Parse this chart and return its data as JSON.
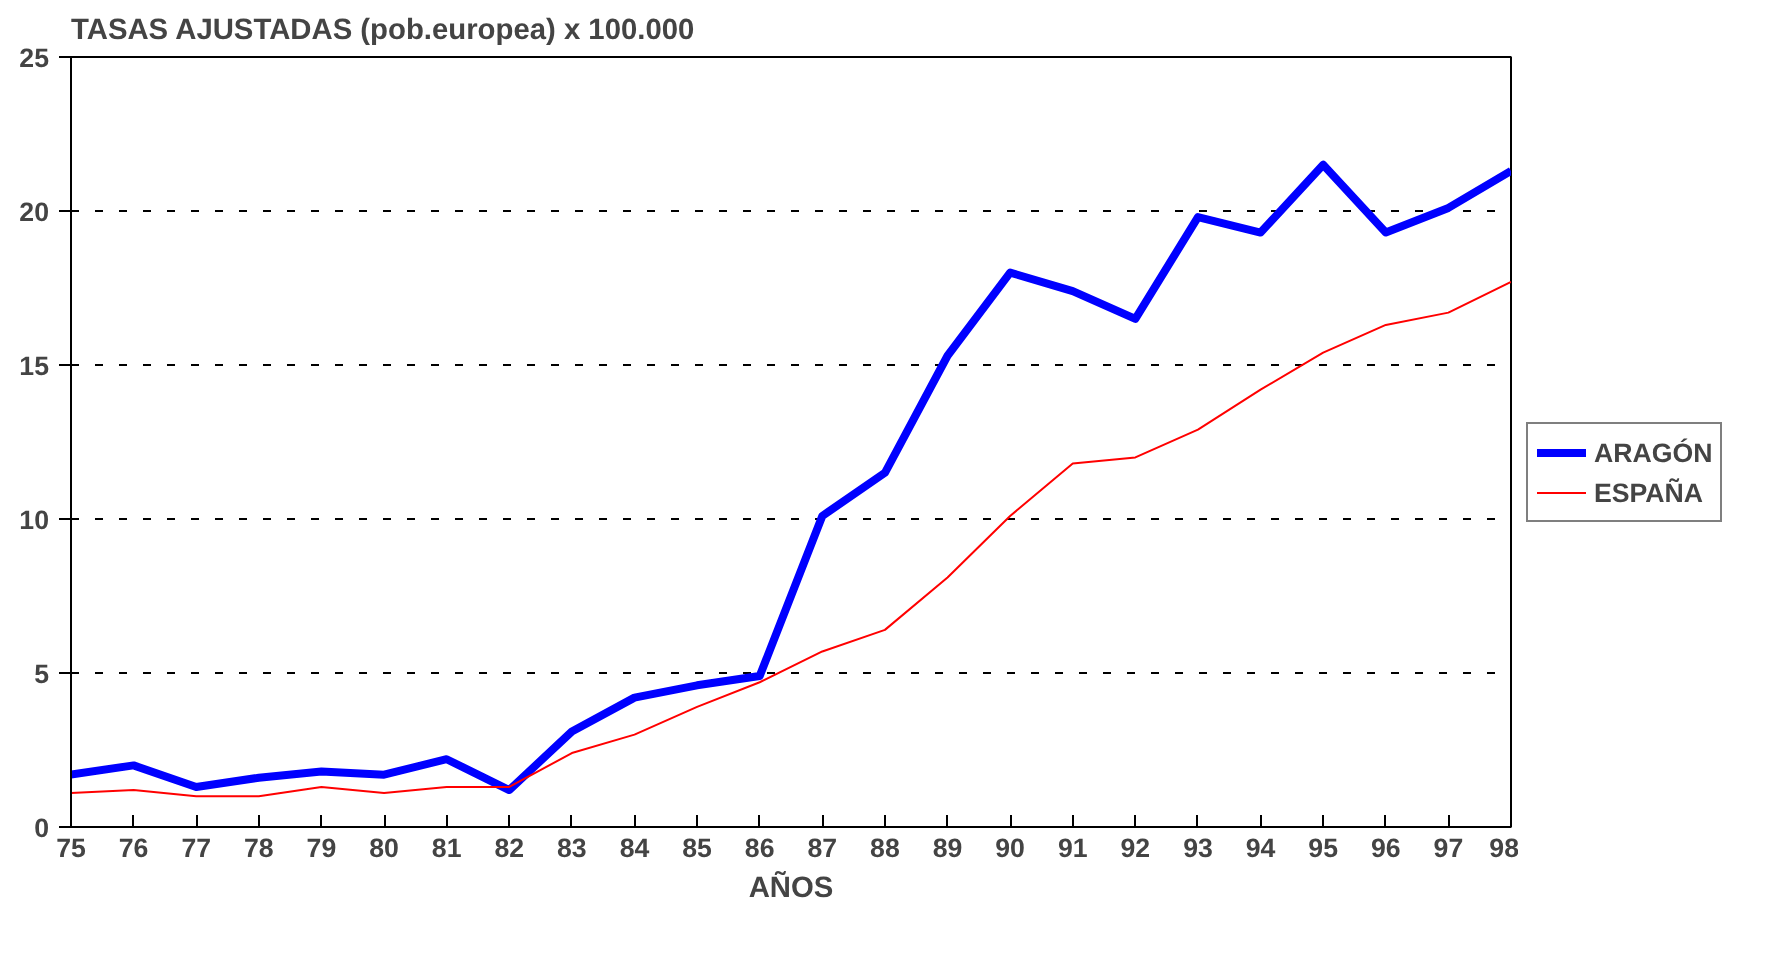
{
  "chart_data": {
    "type": "line",
    "title": "TASAS AJUSTADAS (pob.europea) x 100.000",
    "xlabel": "AÑOS",
    "categories": [
      "75",
      "76",
      "77",
      "78",
      "79",
      "80",
      "81",
      "82",
      "83",
      "84",
      "85",
      "86",
      "87",
      "88",
      "89",
      "90",
      "91",
      "92",
      "93",
      "94",
      "95",
      "96",
      "97",
      "98"
    ],
    "series": [
      {
        "name": "ARAGÓN",
        "color": "#0000ff",
        "values": [
          1.7,
          2.0,
          1.3,
          1.6,
          1.8,
          1.7,
          2.2,
          1.2,
          3.1,
          4.2,
          4.6,
          4.9,
          10.1,
          11.5,
          15.3,
          18.0,
          17.4,
          16.5,
          19.8,
          19.3,
          21.5,
          19.3,
          20.1,
          21.3
        ]
      },
      {
        "name": "ESPAÑA",
        "color": "#ff0000",
        "values": [
          1.1,
          1.2,
          1.0,
          1.0,
          1.3,
          1.1,
          1.3,
          1.3,
          2.4,
          3.0,
          3.9,
          4.7,
          5.7,
          6.4,
          8.1,
          10.1,
          11.8,
          12.0,
          12.9,
          14.2,
          15.4,
          16.3,
          16.7,
          17.7
        ]
      }
    ],
    "ylim": [
      0,
      25
    ],
    "yticks": [
      0,
      5,
      10,
      15,
      20,
      25
    ],
    "grid": "y",
    "legend": "right",
    "marker": "none",
    "line_style": "solid"
  }
}
